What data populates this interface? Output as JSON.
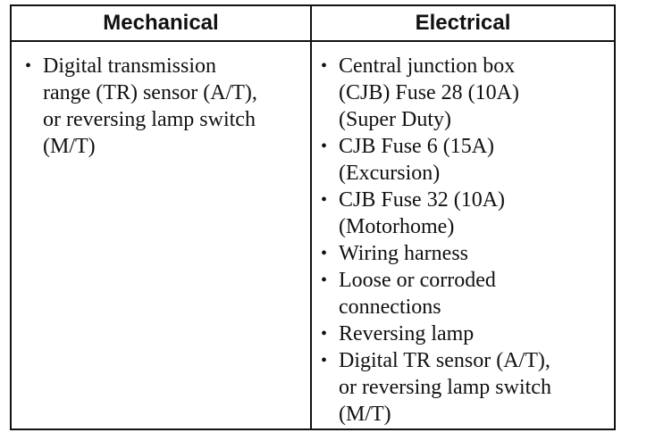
{
  "headers": {
    "mechanical": "Mechanical",
    "electrical": "Electrical"
  },
  "mechanical": [
    "Digital transmission\nrange (TR) sensor (A/T),\nor reversing lamp switch\n(M/T)"
  ],
  "electrical": [
    "Central junction box\n(CJB) Fuse 28 (10A)\n(Super Duty)",
    "CJB Fuse 6 (15A)\n(Excursion)",
    "CJB Fuse 32 (10A)\n(Motorhome)",
    "Wiring harness",
    "Loose or corroded\nconnections",
    "Reversing lamp",
    "Digital TR sensor (A/T),\nor reversing lamp switch\n(M/T)"
  ]
}
